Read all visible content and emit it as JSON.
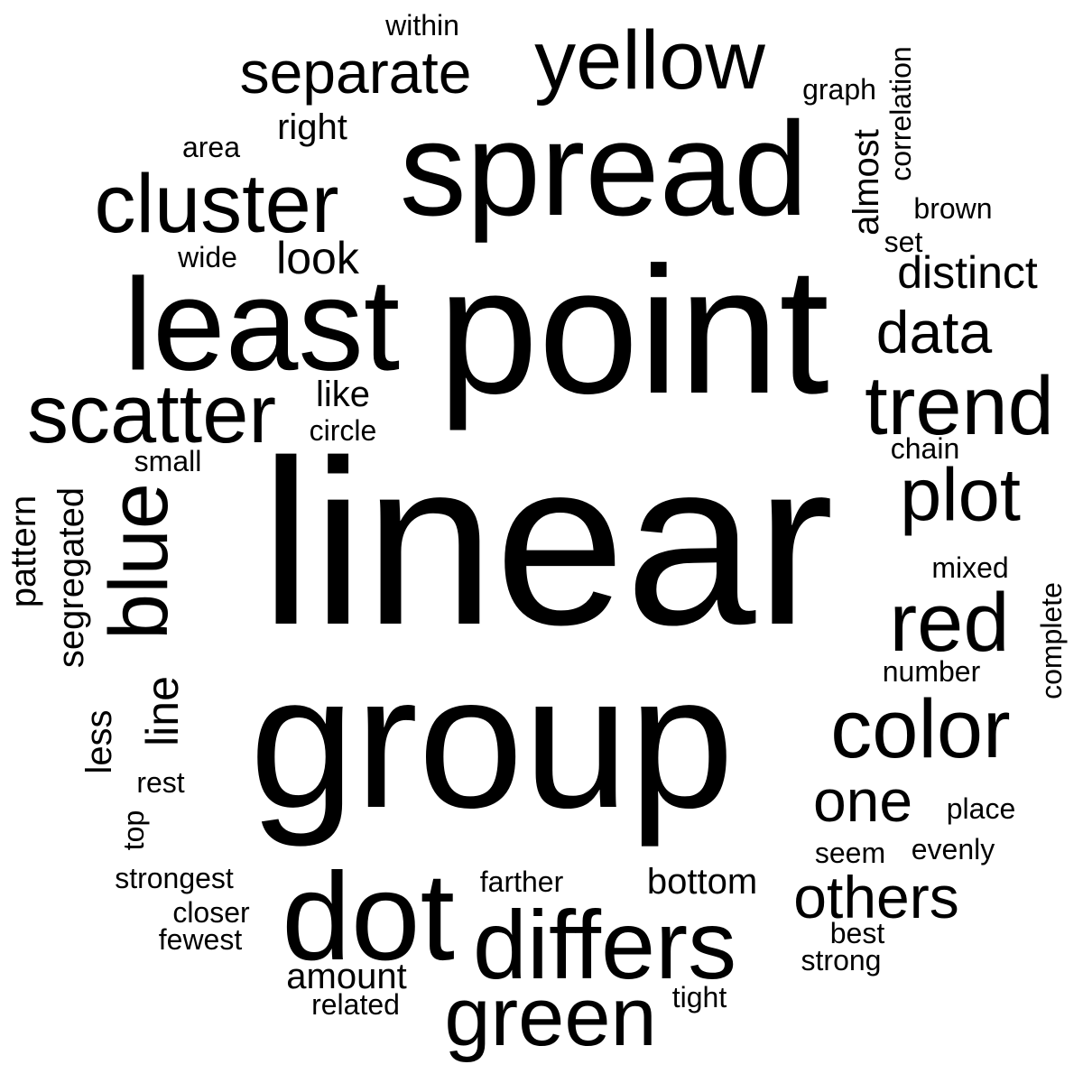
{
  "wordcloud": {
    "background": "#ffffff",
    "text_color": "#000000",
    "words": [
      {
        "text": "linear",
        "rotated": false
      },
      {
        "text": "group",
        "rotated": false
      },
      {
        "text": "point",
        "rotated": false
      },
      {
        "text": "spread",
        "rotated": false
      },
      {
        "text": "least",
        "rotated": false
      },
      {
        "text": "differs",
        "rotated": false
      },
      {
        "text": "dot",
        "rotated": false
      },
      {
        "text": "cluster",
        "rotated": false
      },
      {
        "text": "scatter",
        "rotated": false
      },
      {
        "text": "yellow",
        "rotated": false
      },
      {
        "text": "trend",
        "rotated": false
      },
      {
        "text": "green",
        "rotated": false
      },
      {
        "text": "color",
        "rotated": false
      },
      {
        "text": "blue",
        "rotated": true
      },
      {
        "text": "red",
        "rotated": false
      },
      {
        "text": "separate",
        "rotated": false
      },
      {
        "text": "plot",
        "rotated": false
      },
      {
        "text": "data",
        "rotated": false
      },
      {
        "text": "others",
        "rotated": false
      },
      {
        "text": "one",
        "rotated": false
      },
      {
        "text": "distinct",
        "rotated": false
      },
      {
        "text": "line",
        "rotated": true
      },
      {
        "text": "look",
        "rotated": false
      },
      {
        "text": "bottom",
        "rotated": false
      },
      {
        "text": "amount",
        "rotated": false
      },
      {
        "text": "right",
        "rotated": false
      },
      {
        "text": "almost",
        "rotated": true
      },
      {
        "text": "segregated",
        "rotated": true
      },
      {
        "text": "pattern",
        "rotated": true
      },
      {
        "text": "like",
        "rotated": false
      },
      {
        "text": "less",
        "rotated": true
      },
      {
        "text": "within",
        "rotated": false
      },
      {
        "text": "graph",
        "rotated": false
      },
      {
        "text": "correlation",
        "rotated": true
      },
      {
        "text": "area",
        "rotated": false
      },
      {
        "text": "brown",
        "rotated": false
      },
      {
        "text": "wide",
        "rotated": false
      },
      {
        "text": "set",
        "rotated": false
      },
      {
        "text": "circle",
        "rotated": false
      },
      {
        "text": "chain",
        "rotated": false
      },
      {
        "text": "small",
        "rotated": false
      },
      {
        "text": "mixed",
        "rotated": false
      },
      {
        "text": "complete",
        "rotated": true
      },
      {
        "text": "number",
        "rotated": false
      },
      {
        "text": "rest",
        "rotated": false
      },
      {
        "text": "top",
        "rotated": true
      },
      {
        "text": "place",
        "rotated": false
      },
      {
        "text": "seem",
        "rotated": false
      },
      {
        "text": "evenly",
        "rotated": false
      },
      {
        "text": "strongest",
        "rotated": false
      },
      {
        "text": "farther",
        "rotated": false
      },
      {
        "text": "closer",
        "rotated": false
      },
      {
        "text": "best",
        "rotated": false
      },
      {
        "text": "fewest",
        "rotated": false
      },
      {
        "text": "strong",
        "rotated": false
      },
      {
        "text": "related",
        "rotated": false
      },
      {
        "text": "tight",
        "rotated": false
      }
    ]
  }
}
